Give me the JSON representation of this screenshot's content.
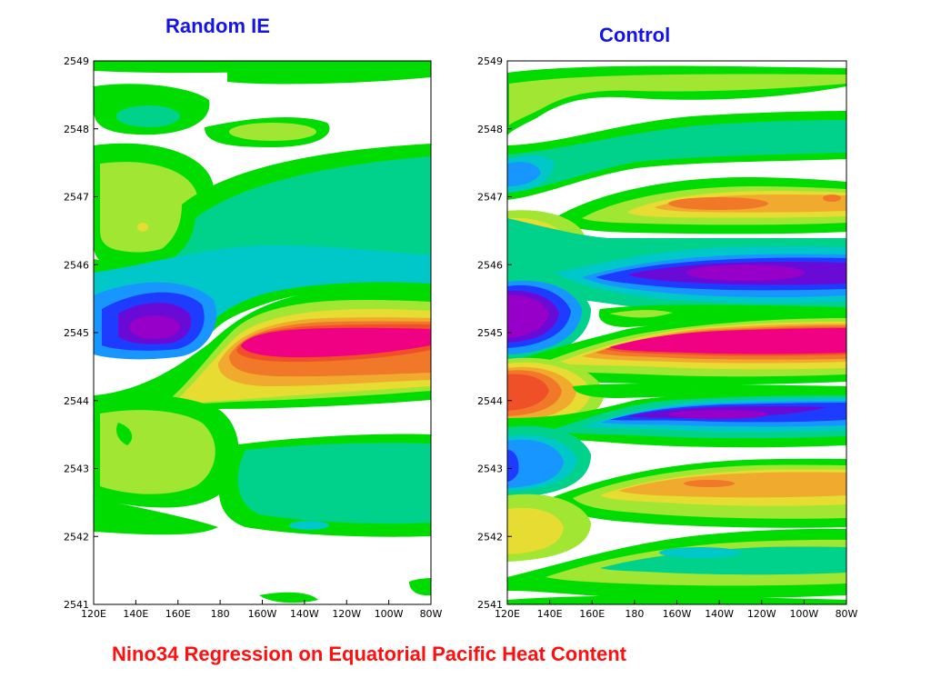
{
  "page": {
    "caption": "Nino34 Regression on Equatorial Pacific Heat Content",
    "colors": {
      "title": "#1414e6",
      "caption": "#ff1010",
      "scale": [
        "#9600c8",
        "#6a0ad6",
        "#1e3cff",
        "#1896ff",
        "#00c8c8",
        "#00d28c",
        "#00dc00",
        "#a0e632",
        "#e6dc32",
        "#f0aa2d",
        "#f07828",
        "#f05028",
        "#f00082"
      ]
    }
  },
  "chart_data": [
    {
      "type": "heatmap",
      "title": "Random IE",
      "x_tick_labels": [
        "120E",
        "140E",
        "160E",
        "180",
        "160W",
        "140W",
        "120W",
        "100W",
        "80W"
      ],
      "x_range": [
        120,
        280
      ],
      "y_tick_labels": [
        "2541",
        "2542",
        "2543",
        "2544",
        "2545",
        "2546",
        "2547",
        "2548",
        "2549"
      ],
      "y_range": [
        2541,
        2549
      ],
      "grid": false,
      "features": [
        {
          "lon": [
            120,
            200
          ],
          "year": [
            2547.9,
            2547.9
          ],
          "value": 0,
          "width": 0.25,
          "span_lon": 80
        },
        {
          "lon": [
            160,
            240
          ],
          "year": [
            2547.7,
            2547.7
          ],
          "value": 2,
          "width": 0.3
        },
        {
          "lon": [
            120,
            280
          ],
          "year": [
            2546.5,
            2546.5
          ],
          "value": 0,
          "width": 1.0
        },
        {
          "lon": [
            130,
            160
          ],
          "year": [
            2545.1,
            2545.15
          ],
          "value": -7,
          "width": 0.45
        },
        {
          "lon": [
            190,
            280
          ],
          "year": [
            2544.8,
            2544.9
          ],
          "value": 8,
          "width": 0.5
        },
        {
          "lon": [
            200,
            280
          ],
          "year": [
            2543.2,
            2543.2
          ],
          "value": 0,
          "width": 0.5
        },
        {
          "lon": [
            120,
            150
          ],
          "year": [
            2543.4,
            2543.4
          ],
          "value": 2,
          "width": 0.5
        }
      ]
    },
    {
      "type": "heatmap",
      "title": "Control",
      "x_tick_labels": [
        "120E",
        "140E",
        "160E",
        "180",
        "160W",
        "140W",
        "120W",
        "100W",
        "80W"
      ],
      "x_range": [
        120,
        280
      ],
      "y_tick_labels": [
        "2541",
        "2542",
        "2543",
        "2544",
        "2545",
        "2546",
        "2547",
        "2548",
        "2549"
      ],
      "y_range": [
        2541,
        2549
      ],
      "grid": false,
      "features": [
        {
          "lon": [
            170,
            280
          ],
          "year": [
            2546.8,
            2546.85
          ],
          "value": 5,
          "width": 0.3
        },
        {
          "lon": [
            160,
            280
          ],
          "year": [
            2545.85,
            2545.85
          ],
          "value": -7,
          "width": 0.35
        },
        {
          "lon": [
            120,
            145
          ],
          "year": [
            2545.2,
            2545.2
          ],
          "value": -7,
          "width": 0.4
        },
        {
          "lon": [
            165,
            280
          ],
          "year": [
            2544.75,
            2544.8
          ],
          "value": 8,
          "width": 0.3
        },
        {
          "lon": [
            120,
            150
          ],
          "year": [
            2544.2,
            2544.2
          ],
          "value": 6,
          "width": 0.35
        },
        {
          "lon": [
            170,
            280
          ],
          "year": [
            2543.7,
            2543.75
          ],
          "value": -6,
          "width": 0.3
        },
        {
          "lon": [
            160,
            280
          ],
          "year": [
            2543.1,
            2543.0
          ],
          "value": 4,
          "width": 0.3
        },
        {
          "lon": [
            120,
            280
          ],
          "year": [
            2541.6,
            2541.6
          ],
          "value": 0,
          "width": 0.3
        }
      ]
    }
  ]
}
